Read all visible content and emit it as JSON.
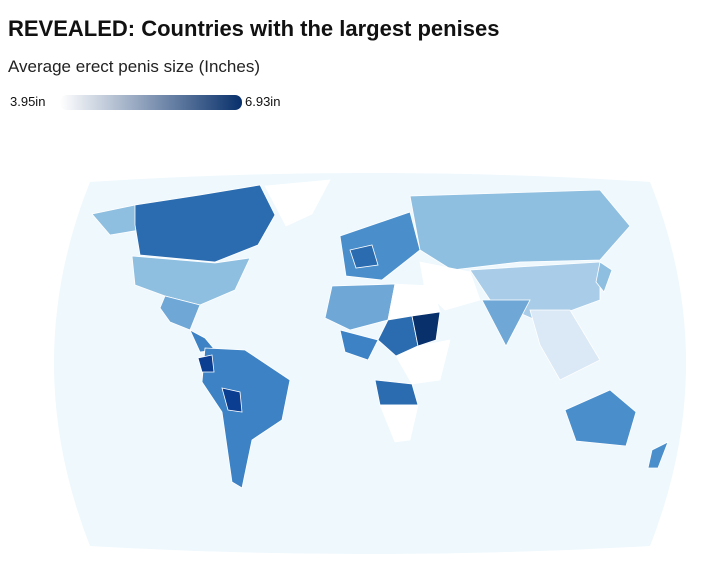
{
  "header": {
    "title": "REVEALED: Countries with the largest penises",
    "subtitle": "Average erect penis size (Inches)"
  },
  "legend": {
    "min": {
      "value": 3.95,
      "label": "3.95in"
    },
    "max": {
      "value": 6.93,
      "label": "6.93in"
    },
    "colors": [
      "#ffffff",
      "#08306b"
    ]
  }
}
